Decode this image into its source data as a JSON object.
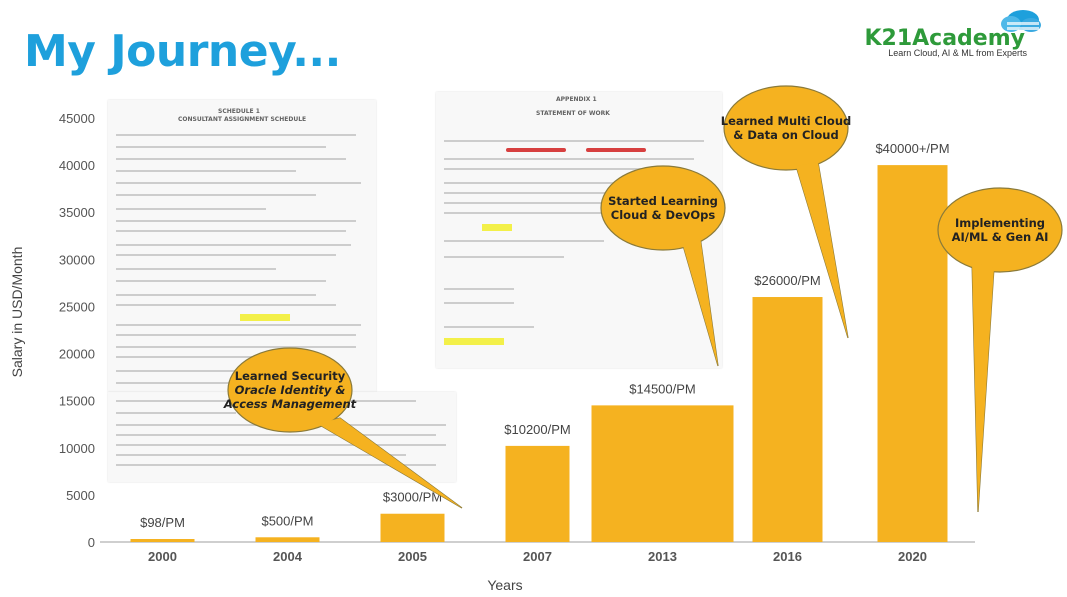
{
  "page": {
    "title": "My Journey...",
    "brand_name": "K21Academy",
    "brand_tagline": "Learn Cloud, AI & ML from Experts"
  },
  "colors": {
    "bar": "#f5b220",
    "title": "#1ea0dc",
    "callout": "#f5b220",
    "callout_stroke": "#8a7a3a"
  },
  "chart_data": {
    "type": "bar",
    "categories": [
      "2000",
      "2004",
      "2005",
      "2007",
      "2013",
      "2016",
      "2020"
    ],
    "values": [
      98,
      500,
      3000,
      10200,
      14500,
      26000,
      40000
    ],
    "data_labels": [
      "$98/PM",
      "$500/PM",
      "$3000/PM",
      "$10200/PM",
      "$14500/PM",
      "$26000/PM",
      "$40000+/PM"
    ],
    "xlabel": "Years",
    "ylabel": "Salary in USD/Month",
    "ylim": [
      0,
      45000
    ],
    "yticks": [
      0,
      5000,
      10000,
      15000,
      20000,
      25000,
      30000,
      35000,
      40000,
      45000
    ],
    "grid": false,
    "annotations": [
      {
        "lines": [
          "Learned Security",
          "Oracle Identity &",
          "Access Management"
        ],
        "italic_lines": [
          1,
          2
        ]
      },
      {
        "lines": [
          "Started Learning",
          "Cloud  & DevOps"
        ]
      },
      {
        "lines": [
          "Learned Multi Cloud",
          "& Data on Cloud"
        ]
      },
      {
        "lines": [
          "Implementing",
          "AI/ML & Gen AI"
        ]
      }
    ]
  }
}
